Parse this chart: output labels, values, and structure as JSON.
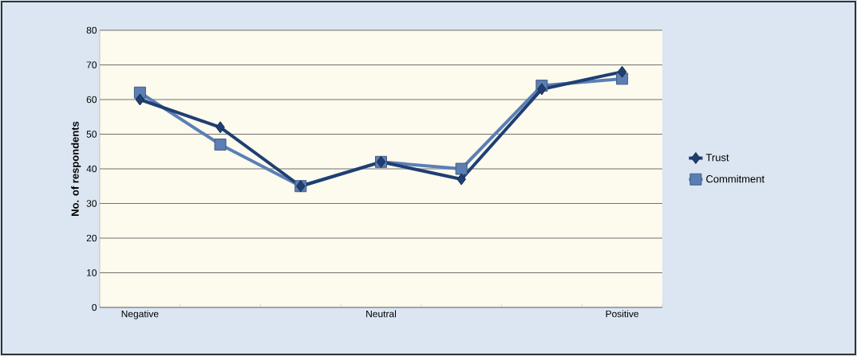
{
  "chart_data": {
    "type": "line",
    "ylabel": "No. of respondents",
    "categories": [
      "Negative",
      null,
      null,
      "Neutral",
      null,
      null,
      "Positive"
    ],
    "series": [
      {
        "name": "Trust",
        "color": "#1f3f73",
        "marker": "diamond",
        "values": [
          60,
          52,
          35,
          42,
          37,
          63,
          68
        ]
      },
      {
        "name": "Commitment",
        "color": "#5b7fb5",
        "marker": "square",
        "values": [
          62,
          47,
          35,
          42,
          40,
          64,
          66
        ]
      }
    ],
    "ylim": [
      0,
      80
    ],
    "yticks": [
      0,
      10,
      20,
      30,
      40,
      50,
      60,
      70,
      80
    ],
    "grid": "y",
    "legend": "right"
  }
}
